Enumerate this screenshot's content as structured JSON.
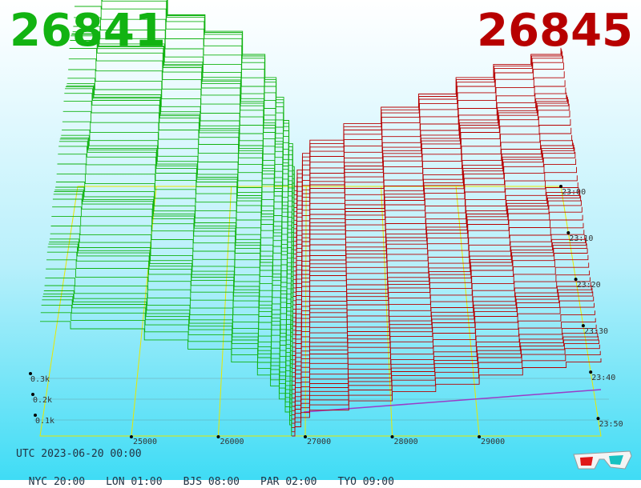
{
  "header": {
    "bid_price": "26841",
    "ask_price": "26845"
  },
  "footer": {
    "utc_label": "UTC 2023-06-20 00:00",
    "timezones": [
      "NYC 20:00",
      "LON 01:00",
      "BJS 08:00",
      "PAR 02:00",
      "TYO 09:00"
    ]
  },
  "icons": {
    "glasses": "3d-glasses-icon"
  },
  "colors": {
    "bid": "#12b312",
    "ask": "#b70000",
    "grid": "#e8e800",
    "base": "#9a3cc8"
  },
  "chart_data": {
    "type": "area",
    "x_ticks": [
      "25000",
      "26000",
      "27000",
      "28000",
      "29000"
    ],
    "time_ticks": [
      "23:00",
      "23:10",
      "23:20",
      "23:30",
      "23:40",
      "23:50"
    ],
    "depth_ticks": [
      "0.3k",
      "0.2k",
      "0.1k"
    ],
    "x_range": [
      23950,
      30400
    ],
    "mid_price": 26843,
    "series": [
      {
        "name": "26841",
        "side": "bid",
        "price_steps": [
          23950,
          24300,
          25150,
          25650,
          26150,
          26450,
          26600,
          26700,
          26770,
          26820,
          26841
        ],
        "cumulative_depth": [
          0.62,
          0.58,
          0.52,
          0.47,
          0.4,
          0.33,
          0.27,
          0.2,
          0.13,
          0.06,
          0.0
        ]
      },
      {
        "name": "26845",
        "side": "ask",
        "price_steps": [
          26845,
          26880,
          26950,
          27050,
          27500,
          28000,
          28500,
          29000,
          29500,
          30000,
          30400
        ],
        "cumulative_depth": [
          0.0,
          0.05,
          0.1,
          0.14,
          0.19,
          0.24,
          0.28,
          0.33,
          0.37,
          0.4,
          0.42
        ]
      }
    ],
    "snapshots": 60
  }
}
